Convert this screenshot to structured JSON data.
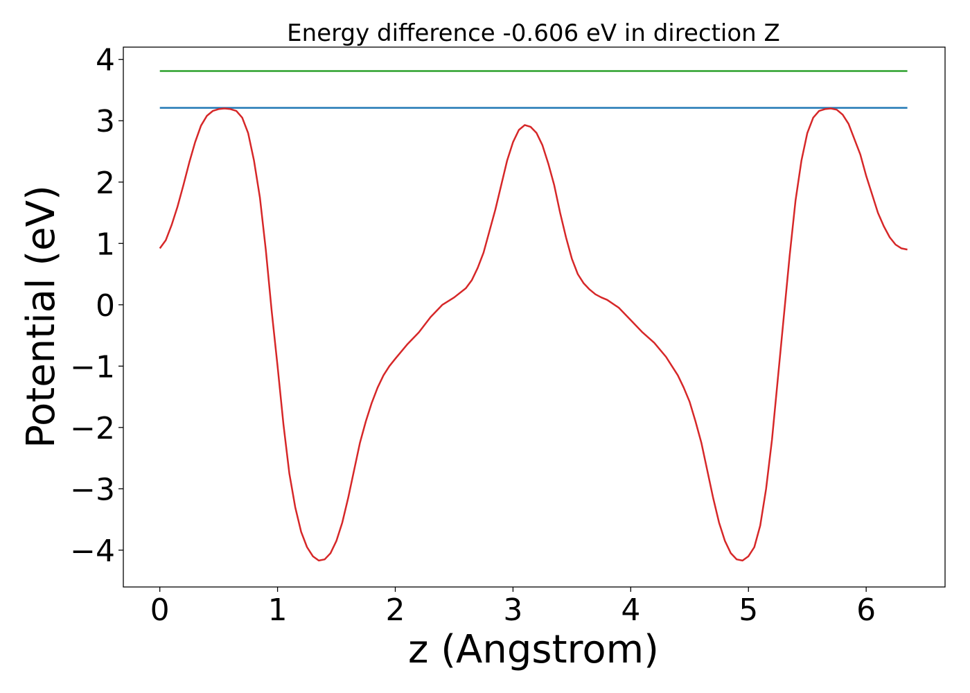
{
  "chart_data": {
    "type": "line",
    "title": "Energy difference -0.606 eV in direction Z",
    "xlabel": "z (Angstrom)",
    "ylabel": "Potential (eV)",
    "xlim": [
      -0.31,
      6.67
    ],
    "ylim": [
      -4.6,
      4.2
    ],
    "xticks": [
      0,
      1,
      2,
      3,
      4,
      5,
      6
    ],
    "xtick_labels": [
      "0",
      "1",
      "2",
      "3",
      "4",
      "5",
      "6"
    ],
    "yticks": [
      -4,
      -3,
      -2,
      -1,
      0,
      1,
      2,
      3,
      4
    ],
    "ytick_labels": [
      "−4",
      "−3",
      "−2",
      "−1",
      "0",
      "1",
      "2",
      "3",
      "4"
    ],
    "grid": false,
    "series": [
      {
        "color": "#2ca02c",
        "x": [
          0,
          6.35
        ],
        "y": [
          3.81,
          3.81
        ]
      },
      {
        "color": "#1f77b4",
        "x": [
          0,
          6.35
        ],
        "y": [
          3.21,
          3.21
        ]
      },
      {
        "color": "#d62728",
        "x": [
          0,
          0.05,
          0.1,
          0.15,
          0.2,
          0.25,
          0.3,
          0.35,
          0.4,
          0.45,
          0.5,
          0.55,
          0.6,
          0.65,
          0.7,
          0.75,
          0.8,
          0.85,
          0.9,
          0.95,
          1.0,
          1.05,
          1.1,
          1.15,
          1.2,
          1.25,
          1.3,
          1.35,
          1.4,
          1.45,
          1.5,
          1.55,
          1.6,
          1.65,
          1.7,
          1.75,
          1.8,
          1.85,
          1.9,
          1.95,
          2.0,
          2.1,
          2.2,
          2.3,
          2.4,
          2.5,
          2.6,
          2.65,
          2.7,
          2.75,
          2.8,
          2.85,
          2.9,
          2.95,
          3.0,
          3.05,
          3.1,
          3.15,
          3.2,
          3.25,
          3.3,
          3.35,
          3.4,
          3.45,
          3.5,
          3.55,
          3.6,
          3.65,
          3.7,
          3.75,
          3.8,
          3.9,
          4.0,
          4.1,
          4.2,
          4.3,
          4.35,
          4.4,
          4.45,
          4.5,
          4.55,
          4.6,
          4.65,
          4.7,
          4.75,
          4.8,
          4.85,
          4.9,
          4.95,
          5.0,
          5.05,
          5.1,
          5.15,
          5.2,
          5.25,
          5.3,
          5.35,
          5.4,
          5.45,
          5.5,
          5.55,
          5.6,
          5.65,
          5.7,
          5.75,
          5.8,
          5.85,
          5.9,
          5.95,
          6.0,
          6.05,
          6.1,
          6.15,
          6.2,
          6.25,
          6.3,
          6.35
        ],
        "y": [
          0.92,
          1.05,
          1.3,
          1.6,
          1.95,
          2.32,
          2.65,
          2.92,
          3.08,
          3.16,
          3.19,
          3.2,
          3.19,
          3.16,
          3.05,
          2.8,
          2.35,
          1.75,
          0.9,
          -0.1,
          -1.0,
          -1.95,
          -2.75,
          -3.3,
          -3.7,
          -3.95,
          -4.1,
          -4.17,
          -4.15,
          -4.05,
          -3.85,
          -3.55,
          -3.15,
          -2.7,
          -2.25,
          -1.9,
          -1.6,
          -1.35,
          -1.15,
          -1.0,
          -0.88,
          -0.65,
          -0.45,
          -0.2,
          0.0,
          0.12,
          0.27,
          0.4,
          0.6,
          0.85,
          1.2,
          1.55,
          1.95,
          2.35,
          2.65,
          2.85,
          2.93,
          2.9,
          2.8,
          2.6,
          2.3,
          1.95,
          1.5,
          1.1,
          0.75,
          0.5,
          0.35,
          0.25,
          0.17,
          0.12,
          0.08,
          -0.05,
          -0.25,
          -0.45,
          -0.62,
          -0.85,
          -1.0,
          -1.15,
          -1.35,
          -1.58,
          -1.9,
          -2.25,
          -2.7,
          -3.15,
          -3.55,
          -3.85,
          -4.05,
          -4.15,
          -4.17,
          -4.1,
          -3.95,
          -3.6,
          -3.0,
          -2.2,
          -1.2,
          -0.2,
          0.8,
          1.7,
          2.35,
          2.8,
          3.05,
          3.16,
          3.19,
          3.2,
          3.18,
          3.1,
          2.95,
          2.7,
          2.45,
          2.1,
          1.8,
          1.5,
          1.28,
          1.1,
          0.98,
          0.92,
          0.9
        ]
      }
    ]
  }
}
